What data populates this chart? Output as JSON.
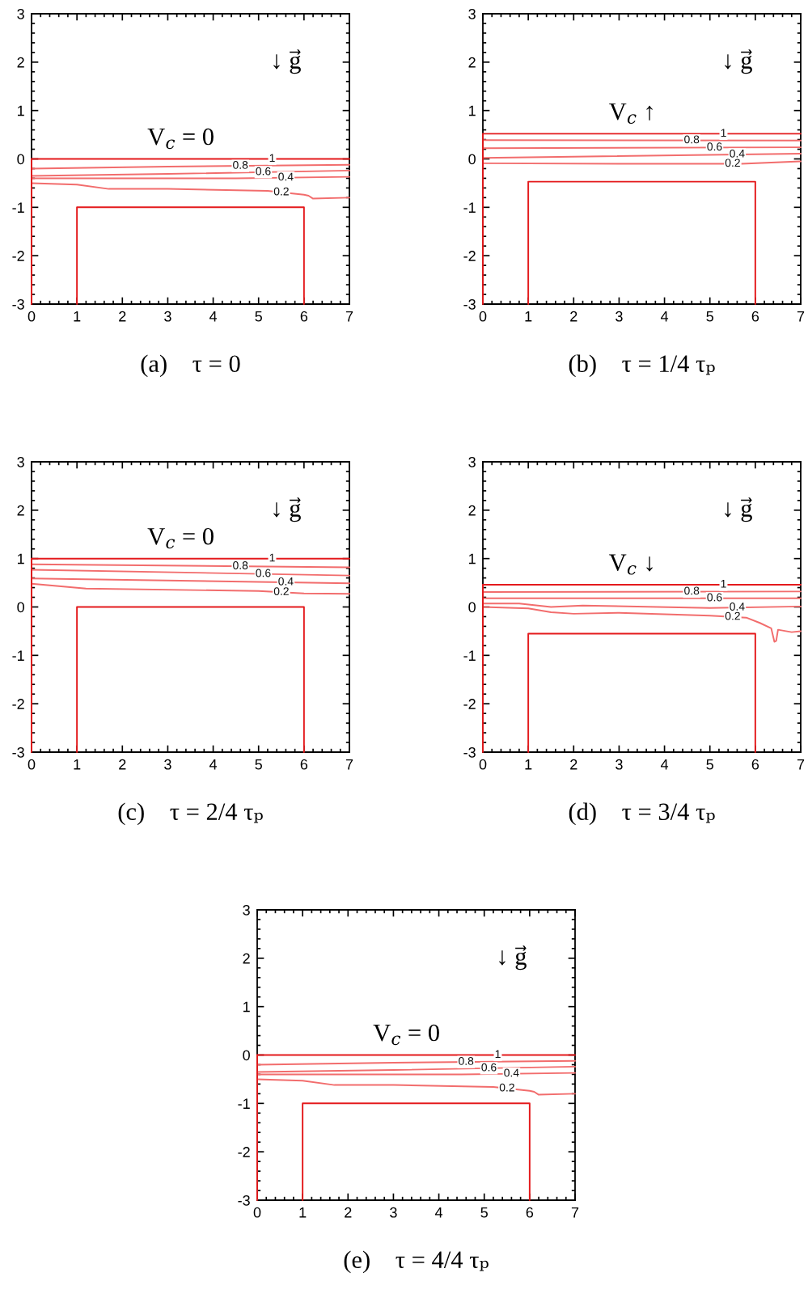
{
  "chart_data": [
    {
      "type": "line",
      "title": "(a)    τ = 0",
      "xlim": [
        0,
        7
      ],
      "ylim": [
        -3,
        3
      ],
      "xticks": [
        0,
        1,
        2,
        3,
        4,
        5,
        6,
        7
      ],
      "yticks": [
        -3,
        -2,
        -1,
        0,
        1,
        2,
        3
      ],
      "series": [
        {
          "name": "1",
          "color": "#e41a1c",
          "x": [
            0,
            7
          ],
          "values": [
            0,
            0
          ]
        },
        {
          "name": "0.8",
          "color": "#f26d6d",
          "x": [
            0,
            3,
            7
          ],
          "values": [
            -0.2,
            -0.16,
            -0.12
          ]
        },
        {
          "name": "0.6",
          "color": "#f26d6d",
          "x": [
            0,
            3,
            7
          ],
          "values": [
            -0.35,
            -0.31,
            -0.24
          ]
        },
        {
          "name": "0.4",
          "color": "#f26d6d",
          "x": [
            0,
            4.5,
            7
          ],
          "values": [
            -0.4,
            -0.4,
            -0.37
          ]
        },
        {
          "name": "0.2",
          "color": "#f26d6d",
          "x": [
            0,
            1,
            1.7,
            3,
            5.2,
            6,
            6.1,
            6.2,
            7
          ],
          "values": [
            -0.5,
            -0.53,
            -0.62,
            -0.62,
            -0.66,
            -0.74,
            -0.76,
            -0.82,
            -0.8
          ]
        },
        {
          "color": "#e41a1c",
          "x": [
            0,
            0
          ],
          "values": [
            -3,
            0
          ]
        },
        {
          "color": "#e41a1c",
          "x": [
            1,
            1,
            6,
            6
          ],
          "values": [
            -3,
            -1,
            -1,
            -3
          ]
        }
      ],
      "annotations": [
        "↓ g⃗",
        "V$_{c}$ = 0"
      ]
    },
    {
      "type": "line",
      "title": "(b)    τ = 1/4 τₚ",
      "xlim": [
        0,
        7
      ],
      "ylim": [
        -3,
        3
      ],
      "xticks": [
        0,
        1,
        2,
        3,
        4,
        5,
        6,
        7
      ],
      "yticks": [
        -3,
        -2,
        -1,
        0,
        1,
        2,
        3
      ],
      "series": [
        {
          "name": "1",
          "color": "#e41a1c",
          "x": [
            0,
            7
          ],
          "values": [
            0.52,
            0.52
          ]
        },
        {
          "name": "0.8",
          "color": "#f26d6d",
          "x": [
            0,
            7
          ],
          "values": [
            0.39,
            0.38
          ]
        },
        {
          "name": "0.6",
          "color": "#f26d6d",
          "x": [
            0,
            7
          ],
          "values": [
            0.22,
            0.24
          ]
        },
        {
          "name": "0.4",
          "color": "#f26d6d",
          "x": [
            0,
            7
          ],
          "values": [
            0.02,
            0.11
          ]
        },
        {
          "name": "0.2",
          "color": "#f26d6d",
          "x": [
            0,
            3,
            5.7,
            7
          ],
          "values": [
            -0.09,
            -0.1,
            -0.1,
            -0.05
          ]
        },
        {
          "color": "#e41a1c",
          "x": [
            0,
            0
          ],
          "values": [
            -3,
            0.52
          ]
        },
        {
          "color": "#e41a1c",
          "x": [
            1,
            1,
            6,
            6
          ],
          "values": [
            -3,
            -0.47,
            -0.47,
            -3
          ]
        }
      ],
      "annotations": [
        "↓ g⃗",
        "V$_{c}$ ↑"
      ]
    },
    {
      "type": "line",
      "title": "(c)    τ = 2/4 τₚ",
      "xlim": [
        0,
        7
      ],
      "ylim": [
        -3,
        3
      ],
      "xticks": [
        0,
        1,
        2,
        3,
        4,
        5,
        6,
        7
      ],
      "yticks": [
        -3,
        -2,
        -1,
        0,
        1,
        2,
        3
      ],
      "series": [
        {
          "name": "1",
          "color": "#e41a1c",
          "x": [
            0,
            7
          ],
          "values": [
            1,
            1
          ]
        },
        {
          "name": "0.8",
          "color": "#f26d6d",
          "x": [
            0,
            7
          ],
          "values": [
            0.88,
            0.82
          ]
        },
        {
          "name": "0.6",
          "color": "#f26d6d",
          "x": [
            0,
            7
          ],
          "values": [
            0.77,
            0.65
          ]
        },
        {
          "name": "0.4",
          "color": "#f26d6d",
          "x": [
            0,
            7
          ],
          "values": [
            0.59,
            0.49
          ]
        },
        {
          "name": "0.2",
          "color": "#f26d6d",
          "x": [
            0,
            1.2,
            5,
            6,
            7
          ],
          "values": [
            0.48,
            0.38,
            0.33,
            0.28,
            0.27
          ]
        },
        {
          "color": "#e41a1c",
          "x": [
            0,
            0
          ],
          "values": [
            -3,
            1
          ]
        },
        {
          "color": "#e41a1c",
          "x": [
            1,
            1,
            6,
            6
          ],
          "values": [
            -3,
            0,
            0,
            -3
          ]
        }
      ],
      "annotations": [
        "↓ g⃗",
        "V$_{c}$ = 0"
      ]
    },
    {
      "type": "line",
      "title": "(d)    τ = 3/4 τₚ",
      "xlim": [
        0,
        7
      ],
      "ylim": [
        -3,
        3
      ],
      "xticks": [
        0,
        1,
        2,
        3,
        4,
        5,
        6,
        7
      ],
      "yticks": [
        -3,
        -2,
        -1,
        0,
        1,
        2,
        3
      ],
      "series": [
        {
          "name": "1",
          "color": "#e41a1c",
          "x": [
            0,
            7
          ],
          "values": [
            0.46,
            0.46
          ]
        },
        {
          "name": "0.8",
          "color": "#f26d6d",
          "x": [
            0,
            7
          ],
          "values": [
            0.31,
            0.32
          ]
        },
        {
          "name": "0.6",
          "color": "#f26d6d",
          "x": [
            0,
            7
          ],
          "values": [
            0.18,
            0.18
          ]
        },
        {
          "name": "0.4",
          "color": "#f26d6d",
          "x": [
            0,
            0.8,
            1.5,
            2.2,
            5,
            7
          ],
          "values": [
            0.07,
            0.07,
            0,
            0.03,
            -0.02,
            0.01
          ]
        },
        {
          "name": "0.2",
          "color": "#f26d6d",
          "x": [
            0,
            1,
            1.5,
            2,
            3,
            5,
            5.8,
            6.1,
            6.35,
            6.42,
            6.46,
            6.5,
            6.8,
            7
          ],
          "values": [
            0,
            -0.03,
            -0.11,
            -0.14,
            -0.12,
            -0.18,
            -0.22,
            -0.33,
            -0.44,
            -0.72,
            -0.7,
            -0.47,
            -0.52,
            -0.5
          ]
        },
        {
          "color": "#e41a1c",
          "x": [
            0,
            0
          ],
          "values": [
            -3,
            0.46
          ]
        },
        {
          "color": "#e41a1c",
          "x": [
            1,
            1,
            6,
            6
          ],
          "values": [
            -3,
            -0.55,
            -0.55,
            -3
          ]
        }
      ],
      "annotations": [
        "↓ g⃗",
        "V$_{c}$ ↓"
      ]
    },
    {
      "type": "line",
      "title": "(e)    τ = 4/4 τₚ",
      "xlim": [
        0,
        7
      ],
      "ylim": [
        -3,
        3
      ],
      "xticks": [
        0,
        1,
        2,
        3,
        4,
        5,
        6,
        7
      ],
      "yticks": [
        -3,
        -2,
        -1,
        0,
        1,
        2,
        3
      ],
      "series": [
        {
          "name": "1",
          "color": "#e41a1c",
          "x": [
            0,
            7
          ],
          "values": [
            0,
            0
          ]
        },
        {
          "name": "0.8",
          "color": "#f26d6d",
          "x": [
            0,
            3,
            7
          ],
          "values": [
            -0.2,
            -0.16,
            -0.12
          ]
        },
        {
          "name": "0.6",
          "color": "#f26d6d",
          "x": [
            0,
            3,
            7
          ],
          "values": [
            -0.35,
            -0.31,
            -0.24
          ]
        },
        {
          "name": "0.4",
          "color": "#f26d6d",
          "x": [
            0,
            4.5,
            7
          ],
          "values": [
            -0.4,
            -0.4,
            -0.37
          ]
        },
        {
          "name": "0.2",
          "color": "#f26d6d",
          "x": [
            0,
            1,
            1.7,
            3,
            5.2,
            6,
            6.1,
            6.2,
            7
          ],
          "values": [
            -0.5,
            -0.53,
            -0.62,
            -0.62,
            -0.66,
            -0.74,
            -0.76,
            -0.82,
            -0.8
          ]
        },
        {
          "color": "#e41a1c",
          "x": [
            0,
            0
          ],
          "values": [
            -3,
            0
          ]
        },
        {
          "color": "#e41a1c",
          "x": [
            1,
            1,
            6,
            6
          ],
          "values": [
            -3,
            -1,
            -1,
            -3
          ]
        }
      ],
      "annotations": [
        "↓ g⃗",
        "V$_{c}$ = 0"
      ]
    }
  ]
}
